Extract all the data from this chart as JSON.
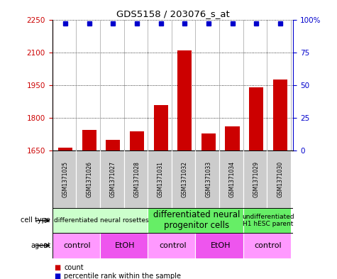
{
  "title": "GDS5158 / 203076_s_at",
  "samples": [
    "GSM1371025",
    "GSM1371026",
    "GSM1371027",
    "GSM1371028",
    "GSM1371031",
    "GSM1371032",
    "GSM1371033",
    "GSM1371034",
    "GSM1371029",
    "GSM1371030"
  ],
  "counts": [
    1665,
    1745,
    1700,
    1740,
    1860,
    2110,
    1730,
    1760,
    1940,
    1975
  ],
  "percentiles": [
    97,
    97,
    97,
    97,
    97,
    97,
    97,
    97,
    97,
    97
  ],
  "ylim_left": [
    1650,
    2250
  ],
  "ylim_right": [
    0,
    100
  ],
  "yticks_left": [
    1650,
    1800,
    1950,
    2100,
    2250
  ],
  "yticks_right": [
    0,
    25,
    50,
    75,
    100
  ],
  "bar_color": "#cc0000",
  "dot_color": "#0000cc",
  "cell_type_groups": [
    {
      "label": "differentiated neural rosettes",
      "start": 0,
      "end": 3,
      "color": "#ccffcc",
      "fontsize": 6.5
    },
    {
      "label": "differentiated neural\nprogenitor cells",
      "start": 4,
      "end": 7,
      "color": "#66ee66",
      "fontsize": 8.5
    },
    {
      "label": "undifferentiated\nH1 hESC parent",
      "start": 8,
      "end": 9,
      "color": "#66ee66",
      "fontsize": 6.5
    }
  ],
  "agent_groups": [
    {
      "label": "control",
      "start": 0,
      "end": 1,
      "color": "#ff99ff"
    },
    {
      "label": "EtOH",
      "start": 2,
      "end": 3,
      "color": "#ee55ee"
    },
    {
      "label": "control",
      "start": 4,
      "end": 5,
      "color": "#ff99ff"
    },
    {
      "label": "EtOH",
      "start": 6,
      "end": 7,
      "color": "#ee55ee"
    },
    {
      "label": "control",
      "start": 8,
      "end": 9,
      "color": "#ff99ff"
    }
  ],
  "legend_count_color": "#cc0000",
  "legend_dot_color": "#0000cc",
  "ylabel_left_color": "#cc0000",
  "ylabel_right_color": "#0000cc"
}
